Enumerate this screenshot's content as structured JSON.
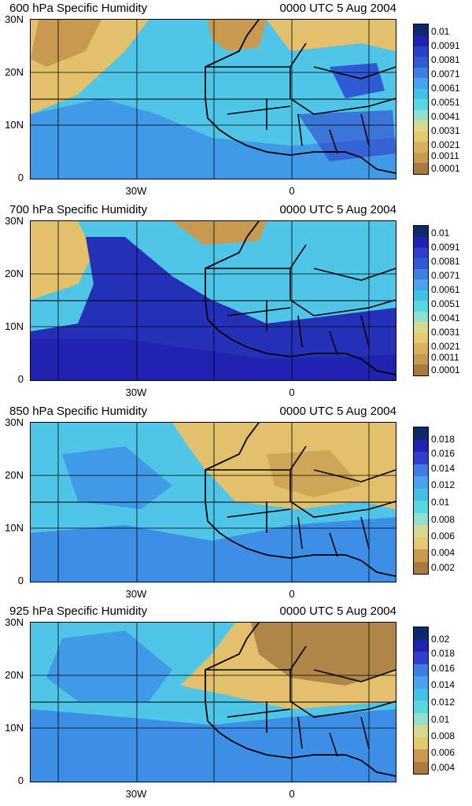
{
  "valid_time": "0000 UTC 5 Aug 2004",
  "y_ticks": [
    "30N",
    "20N",
    "10N",
    "0"
  ],
  "x_ticks": [
    "30W",
    "0"
  ],
  "panels": [
    {
      "title": "600 hPa Specific Humidity",
      "colorbar_labels": [
        "0.01",
        "0.0091",
        "0.0081",
        "0.0071",
        "0.0061",
        "0.0051",
        "0.0041",
        "0.0031",
        "0.0021",
        "0.0011",
        "0.0001"
      ],
      "colors": [
        "#0b2a6b",
        "#1f23b0",
        "#2d3fcc",
        "#2f5ad6",
        "#3d7fe3",
        "#4aa3ec",
        "#3fc2e6",
        "#58d8e0",
        "#8fe0cc",
        "#d8d890",
        "#e6c96e",
        "#d9b060",
        "#c89a50",
        "#a87a3e"
      ]
    },
    {
      "title": "700 hPa Specific Humidity",
      "colorbar_labels": [
        "0.01",
        "0.0091",
        "0.0081",
        "0.0071",
        "0.0061",
        "0.0051",
        "0.0041",
        "0.0031",
        "0.0021",
        "0.0011",
        "0.0001"
      ],
      "colors": [
        "#0b2a6b",
        "#1f23b0",
        "#2d3fcc",
        "#2f5ad6",
        "#3d7fe3",
        "#4aa3ec",
        "#3fc2e6",
        "#58d8e0",
        "#8fe0cc",
        "#d8d890",
        "#e6c96e",
        "#d9b060",
        "#c89a50",
        "#a87a3e"
      ]
    },
    {
      "title": "850 hPa Specific Humidity",
      "colorbar_labels": [
        "0.018",
        "0.016",
        "0.014",
        "0.012",
        "0.01",
        "0.008",
        "0.006",
        "0.004",
        "0.002"
      ],
      "colors": [
        "#0b2a6b",
        "#1f23b0",
        "#2d3fcc",
        "#3d7fe3",
        "#4aa3ec",
        "#3fc2e6",
        "#58d8e0",
        "#8fe0cc",
        "#d8d890",
        "#e6c96e",
        "#c89a50",
        "#a87a3e"
      ]
    },
    {
      "title": "925 hPa Specific Humidity",
      "colorbar_labels": [
        "0.02",
        "0.018",
        "0.016",
        "0.014",
        "0.012",
        "0.01",
        "0.008",
        "0.006",
        "0.004"
      ],
      "colors": [
        "#0b2a6b",
        "#1f23b0",
        "#2d3fcc",
        "#3d7fe3",
        "#4aa3ec",
        "#3fc2e6",
        "#58d8e0",
        "#8fe0cc",
        "#d8d890",
        "#e6c96e",
        "#c89a50",
        "#a87a3e"
      ]
    }
  ],
  "palette": {
    "ocean_moist": "#3d8fe6",
    "ocean_mid": "#4fc6e8",
    "dry_land": "#e2c06c",
    "very_dry": "#b08548",
    "deep_moist": "#2530b8",
    "border": "#000000"
  }
}
